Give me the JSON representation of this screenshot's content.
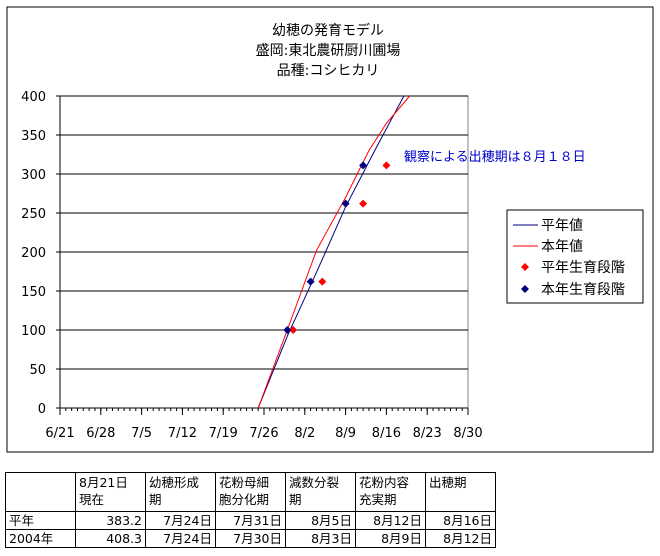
{
  "chart_data": {
    "type": "line",
    "title": [
      "幼穂の発育モデル",
      "盛岡:東北農研厨川圃場",
      "品種:コシヒカリ"
    ],
    "xlabel": "",
    "ylabel": "",
    "x_ticks": [
      "6/21",
      "6/28",
      "7/5",
      "7/12",
      "7/19",
      "7/26",
      "8/2",
      "8/9",
      "8/16",
      "8/23",
      "8/30"
    ],
    "x_domain": [
      "6/21",
      "8/30"
    ],
    "ylim": [
      0,
      400
    ],
    "y_ticks": [
      0,
      50,
      100,
      150,
      200,
      250,
      300,
      350,
      400
    ],
    "grid": "horizontal",
    "legend_position": "right",
    "series": [
      {
        "name": "平年値",
        "type": "line",
        "color": "#000080",
        "points": [
          [
            "7/25",
            0
          ],
          [
            "7/30",
            92
          ],
          [
            "8/4",
            174
          ],
          [
            "8/9",
            258
          ],
          [
            "8/14",
            330
          ],
          [
            "8/19",
            400
          ]
        ]
      },
      {
        "name": "本年値",
        "type": "line",
        "color": "#ff0000",
        "points": [
          [
            "7/25",
            0
          ],
          [
            "7/30",
            100
          ],
          [
            "8/4",
            202
          ],
          [
            "8/9",
            270
          ],
          [
            "8/13",
            330
          ],
          [
            "8/16",
            365
          ],
          [
            "8/20",
            400
          ]
        ]
      },
      {
        "name": "平年生育段階",
        "type": "scatter",
        "color": "#ff0000",
        "points": [
          [
            "7/31",
            100
          ],
          [
            "8/5",
            162
          ],
          [
            "8/12",
            262
          ],
          [
            "8/16",
            311
          ]
        ]
      },
      {
        "name": "本年生育段階",
        "type": "scatter",
        "color": "#000080",
        "points": [
          [
            "7/30",
            100
          ],
          [
            "8/3",
            162
          ],
          [
            "8/9",
            262
          ],
          [
            "8/12",
            311
          ]
        ]
      }
    ],
    "annotation": {
      "text": "観察による出穂期は８月１８日",
      "color": "#0000cc"
    }
  },
  "table": {
    "header": [
      "",
      "8月21日\n現在",
      "幼穂形成\n期",
      "花粉母細\n胞分化期",
      "減数分裂\n期",
      "花粉内容\n充実期",
      "出穂期"
    ],
    "rows": [
      [
        "平年",
        "383.2",
        "7月24日",
        "7月31日",
        "8月5日",
        "8月12日",
        "8月16日"
      ],
      [
        "2004年",
        "408.3",
        "7月24日",
        "7月30日",
        "8月3日",
        "8月9日",
        "8月12日"
      ]
    ]
  }
}
